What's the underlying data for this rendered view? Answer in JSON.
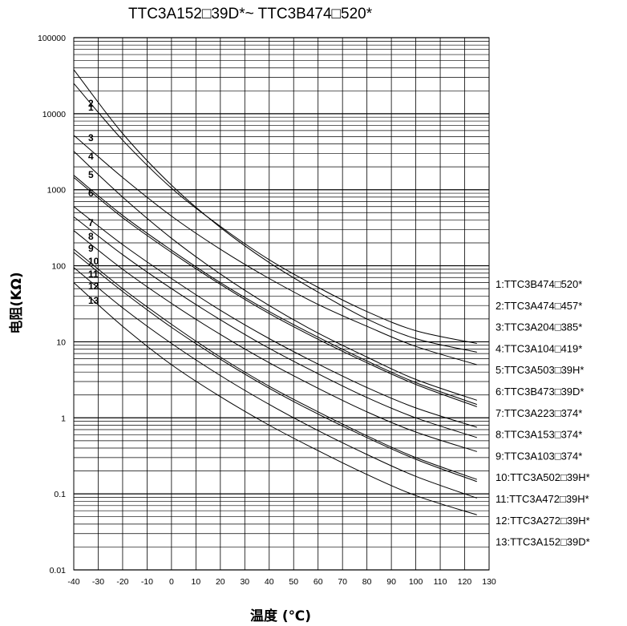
{
  "chart_data": {
    "type": "line",
    "title_parts": [
      "TTC3A152",
      "39D*~ TTC3B474",
      "520*"
    ],
    "xlabel": "温度 (℃)",
    "ylabel": "电阻(KΩ)",
    "x_scale": "linear",
    "y_scale": "log",
    "xlim": [
      -40,
      130
    ],
    "ylim": [
      0.01,
      100000
    ],
    "x_ticks": [
      "-40",
      "-30",
      "-20",
      "-10",
      "0",
      "10",
      "20",
      "30",
      "40",
      "50",
      "60",
      "70",
      "80",
      "90",
      "100",
      "110",
      "120",
      "130"
    ],
    "y_ticks": [
      "0.01",
      "0.1",
      "1",
      "10",
      "100",
      "1000",
      "10000",
      "100000"
    ],
    "grid": true,
    "legend_position": "right",
    "series": [
      {
        "name": "1",
        "legend": [
          "1:TTC3B474",
          "520*"
        ],
        "x": [
          -40,
          -20,
          0,
          20,
          40,
          60,
          80,
          100,
          125
        ],
        "y": [
          38000,
          5500,
          1150,
          320,
          110,
          45,
          20,
          11,
          7.3
        ]
      },
      {
        "name": "2",
        "legend": [
          "2:TTC3A474",
          "457*"
        ],
        "x": [
          -40,
          -20,
          0,
          20,
          40,
          60,
          80,
          100,
          125
        ],
        "y": [
          25000,
          4500,
          1050,
          330,
          120,
          52,
          25,
          14,
          9.5
        ]
      },
      {
        "name": "3",
        "legend": [
          "3:TTC3A204",
          "385*"
        ],
        "x": [
          -40,
          -20,
          0,
          20,
          40,
          60,
          80,
          100,
          125
        ],
        "y": [
          5200,
          1450,
          450,
          165,
          68,
          31,
          16,
          8.7,
          5.0
        ]
      },
      {
        "name": "4",
        "legend": [
          "4:TTC3A104",
          "419*"
        ],
        "x": [
          -40,
          -20,
          0,
          20,
          40,
          60,
          80,
          100,
          125
        ],
        "y": [
          3200,
          800,
          230,
          78,
          30,
          13,
          6.3,
          3.2,
          1.7
        ]
      },
      {
        "name": "5",
        "legend": [
          "5:TTC3A503",
          "39H*"
        ],
        "x": [
          -40,
          -20,
          0,
          20,
          40,
          60,
          80,
          100,
          125
        ],
        "y": [
          1550,
          460,
          160,
          60,
          25,
          11.5,
          5.6,
          2.9,
          1.5
        ]
      },
      {
        "name": "6",
        "legend": [
          "6:TTC3B473",
          "39D*"
        ],
        "x": [
          -40,
          -20,
          0,
          20,
          40,
          60,
          80,
          100,
          125
        ],
        "y": [
          1450,
          430,
          150,
          57,
          23.5,
          10.8,
          5.3,
          2.75,
          1.4
        ]
      },
      {
        "name": "7",
        "legend": [
          "7:TTC3A223",
          "374*"
        ],
        "x": [
          -40,
          -20,
          0,
          20,
          40,
          60,
          80,
          100,
          125
        ],
        "y": [
          600,
          190,
          68,
          26,
          11,
          5.1,
          2.5,
          1.35,
          0.75
        ]
      },
      {
        "name": "8",
        "legend": [
          "8:TTC3A153",
          "374*"
        ],
        "x": [
          -40,
          -20,
          0,
          20,
          40,
          60,
          80,
          100,
          125
        ],
        "y": [
          440,
          140,
          50,
          19.5,
          8.2,
          3.8,
          1.85,
          1.0,
          0.55
        ]
      },
      {
        "name": "9",
        "legend": [
          "9:TTC3A103",
          "374*"
        ],
        "x": [
          -40,
          -20,
          0,
          20,
          40,
          60,
          80,
          100,
          125
        ],
        "y": [
          290,
          90,
          32,
          12.5,
          5.3,
          2.45,
          1.2,
          0.65,
          0.36
        ]
      },
      {
        "name": "10",
        "legend": [
          "10:TTC3A502",
          "39H*"
        ],
        "x": [
          -40,
          -20,
          0,
          20,
          40,
          60,
          80,
          100,
          125
        ],
        "y": [
          165,
          50,
          17,
          6.3,
          2.6,
          1.2,
          0.58,
          0.3,
          0.155
        ]
      },
      {
        "name": "11",
        "legend": [
          "11:TTC3A472",
          "39H*"
        ],
        "x": [
          -40,
          -20,
          0,
          20,
          40,
          60,
          80,
          100,
          125
        ],
        "y": [
          150,
          46,
          15.5,
          5.9,
          2.45,
          1.12,
          0.55,
          0.285,
          0.145
        ]
      },
      {
        "name": "12",
        "legend": [
          "12:TTC3A272",
          "39H*"
        ],
        "x": [
          -40,
          -20,
          0,
          20,
          40,
          60,
          80,
          100,
          125
        ],
        "y": [
          95,
          28,
          9.5,
          3.6,
          1.5,
          0.68,
          0.33,
          0.17,
          0.088
        ]
      },
      {
        "name": "13",
        "legend": [
          "13:TTC3A152",
          "39D*"
        ],
        "x": [
          -40,
          -20,
          0,
          20,
          40,
          60,
          80,
          100,
          125
        ],
        "y": [
          60,
          16,
          5.0,
          1.9,
          0.8,
          0.37,
          0.18,
          0.095,
          0.053
        ]
      }
    ]
  }
}
